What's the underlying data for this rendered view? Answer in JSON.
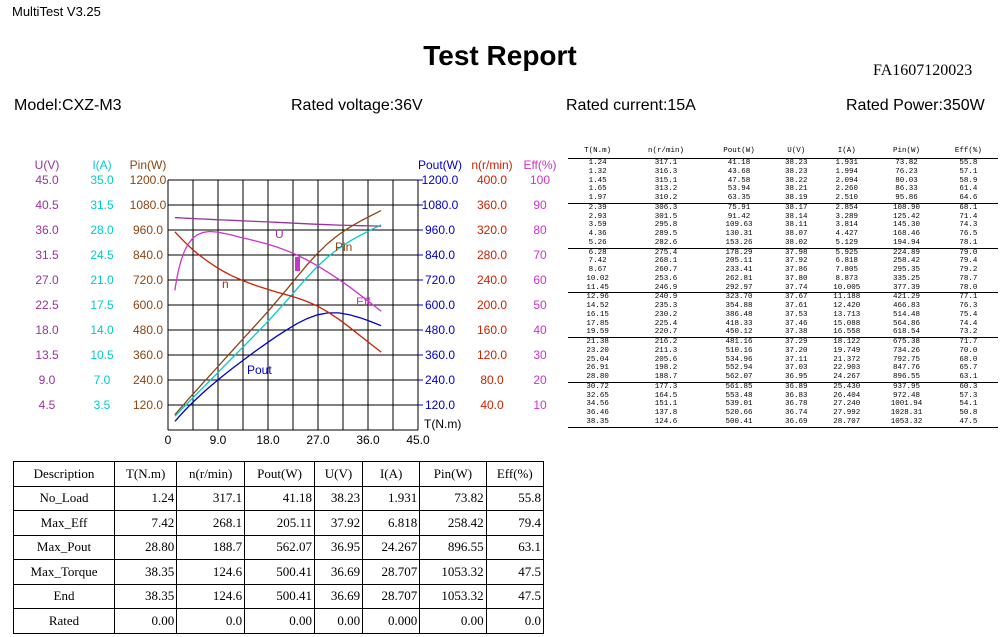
{
  "app": {
    "title": "MultiTest V3.25"
  },
  "report": {
    "title": "Test Report",
    "id": "FA1607120023",
    "model": "Model:CXZ-M3",
    "rated_voltage": "Rated voltage:36V",
    "rated_current": "Rated current:15A",
    "rated_power": "Rated Power:350W"
  },
  "colors": {
    "U": "#993399",
    "I": "#00cccc",
    "Pin": "#8b4513",
    "Pout": "#0000cc",
    "n": "#cc2200",
    "Eff": "#cc33cc"
  },
  "chart_data": {
    "type": "line",
    "xlabel": "T(N.m)",
    "x_ticks": [
      "0",
      "9.0",
      "18.0",
      "27.0",
      "36.0",
      "45.0"
    ],
    "xlim": [
      0,
      45
    ],
    "axes": [
      {
        "label": "U(V)",
        "ticks": [
          "45.0",
          "40.5",
          "36.0",
          "31.5",
          "27.0",
          "22.5",
          "18.0",
          "13.5",
          "9.0",
          "4.5"
        ]
      },
      {
        "label": "I(A)",
        "ticks": [
          "35.0",
          "31.5",
          "28.0",
          "24.5",
          "21.0",
          "17.5",
          "14.0",
          "10.5",
          "7.0",
          "3.5"
        ]
      },
      {
        "label": "Pin(W)",
        "ticks": [
          "1200.0",
          "1080.0",
          "960.0",
          "840.0",
          "720.0",
          "600.0",
          "480.0",
          "360.0",
          "240.0",
          "120.0"
        ]
      },
      {
        "label": "Pout(W)",
        "ticks": [
          "1200.0",
          "1080.0",
          "960.0",
          "840.0",
          "720.0",
          "600.0",
          "480.0",
          "360.0",
          "240.0",
          "120.0"
        ]
      },
      {
        "label": "n(r/min)",
        "ticks": [
          "400.0",
          "360.0",
          "320.0",
          "280.0",
          "240.0",
          "200.0",
          "160.0",
          "120.0",
          "80.0",
          "40.0"
        ]
      },
      {
        "label": "Eff(%)",
        "ticks": [
          "100",
          "90",
          "80",
          "70",
          "60",
          "50",
          "40",
          "30",
          "20",
          "10"
        ]
      }
    ],
    "series_labels": {
      "U": "U",
      "Pin": "Pin",
      "n": "n",
      "Eff": "Eff",
      "Pout": "Pout"
    },
    "series": [
      {
        "name": "U",
        "axis": "U(V)",
        "ymax": 45,
        "values": [
          38.23,
          38.23,
          38.22,
          38.21,
          38.19,
          38.17,
          38.14,
          38.11,
          38.07,
          38.02,
          37.98,
          37.92,
          37.86,
          37.8,
          37.74,
          37.67,
          37.61,
          37.53,
          37.46,
          37.38,
          37.29,
          37.2,
          37.11,
          37.03,
          36.95,
          36.89,
          36.83,
          36.78,
          36.74,
          36.69
        ]
      },
      {
        "name": "I",
        "axis": "I(A)",
        "ymax": 35,
        "values": [
          1.931,
          1.994,
          2.094,
          2.26,
          2.51,
          2.854,
          3.289,
          3.814,
          4.427,
          5.129,
          5.925,
          6.818,
          7.805,
          8.873,
          10.005,
          11.188,
          12.42,
          13.713,
          15.088,
          16.558,
          18.122,
          19.749,
          21.372,
          22.903,
          24.267,
          25.43,
          26.404,
          27.24,
          27.992,
          28.707
        ]
      },
      {
        "name": "Pin",
        "axis": "Pin(W)",
        "ymax": 1200,
        "values": [
          73.82,
          76.23,
          80.03,
          86.33,
          95.86,
          108.9,
          125.42,
          145.3,
          168.46,
          194.94,
          224.89,
          258.42,
          295.35,
          335.25,
          377.39,
          421.29,
          466.83,
          514.48,
          564.86,
          618.54,
          675.38,
          734.26,
          792.75,
          847.76,
          896.55,
          937.95,
          972.48,
          1001.94,
          1028.31,
          1053.32
        ]
      },
      {
        "name": "Pout",
        "axis": "Pout(W)",
        "ymax": 1200,
        "values": [
          41.18,
          43.68,
          47.58,
          53.94,
          63.35,
          75.91,
          91.42,
          109.63,
          130.31,
          153.26,
          178.29,
          205.11,
          233.41,
          262.81,
          292.97,
          323.7,
          354.88,
          386.48,
          418.33,
          450.12,
          481.16,
          510.16,
          534.96,
          552.94,
          562.07,
          561.85,
          553.48,
          539.01,
          520.66,
          500.41
        ]
      },
      {
        "name": "n",
        "axis": "n(r/min)",
        "ymax": 400,
        "values": [
          317.1,
          316.3,
          315.1,
          313.2,
          310.2,
          306.3,
          301.5,
          295.8,
          289.5,
          282.6,
          275.4,
          268.1,
          260.7,
          253.6,
          246.9,
          240.9,
          235.3,
          230.2,
          225.4,
          220.7,
          216.2,
          211.3,
          205.6,
          198.2,
          188.7,
          177.3,
          164.5,
          151.1,
          137.8,
          124.6
        ]
      },
      {
        "name": "Eff",
        "axis": "Eff(%)",
        "ymax": 100,
        "values": [
          55.8,
          57.1,
          58.9,
          61.4,
          64.6,
          68.1,
          71.4,
          74.3,
          76.5,
          78.1,
          79.0,
          79.4,
          79.2,
          78.7,
          78.0,
          77.1,
          76.3,
          75.4,
          74.4,
          73.2,
          71.7,
          70.0,
          68.0,
          65.7,
          63.1,
          60.3,
          57.3,
          54.1,
          50.8,
          47.5
        ]
      }
    ],
    "x": [
      1.24,
      1.32,
      1.45,
      1.65,
      1.97,
      2.39,
      2.93,
      3.59,
      4.36,
      5.26,
      6.28,
      7.42,
      8.67,
      10.02,
      11.45,
      12.96,
      14.52,
      16.15,
      17.85,
      19.59,
      21.38,
      23.2,
      25.04,
      26.91,
      28.8,
      30.72,
      32.65,
      34.56,
      36.46,
      38.35
    ],
    "grid": true
  },
  "summary": {
    "headers": [
      "Description",
      "T(N.m)",
      "n(r/min)",
      "Pout(W)",
      "U(V)",
      "I(A)",
      "Pin(W)",
      "Eff(%)"
    ],
    "rows": [
      [
        "No_Load",
        "1.24",
        "317.1",
        "41.18",
        "38.23",
        "1.931",
        "73.82",
        "55.8"
      ],
      [
        "Max_Eff",
        "7.42",
        "268.1",
        "205.11",
        "37.92",
        "6.818",
        "258.42",
        "79.4"
      ],
      [
        "Max_Pout",
        "28.80",
        "188.7",
        "562.07",
        "36.95",
        "24.267",
        "896.55",
        "63.1"
      ],
      [
        "Max_Torque",
        "38.35",
        "124.6",
        "500.41",
        "36.69",
        "28.707",
        "1053.32",
        "47.5"
      ],
      [
        "End",
        "38.35",
        "124.6",
        "500.41",
        "36.69",
        "28.707",
        "1053.32",
        "47.5"
      ],
      [
        "Rated",
        "0.00",
        "0.0",
        "0.00",
        "0.00",
        "0.000",
        "0.00",
        "0.0"
      ]
    ]
  },
  "data_table": {
    "headers": [
      "T(N.m)",
      "n(r/min)",
      "Pout(W)",
      "U(V)",
      "I(A)",
      "Pin(W)",
      "Eff(%)"
    ],
    "rows": [
      [
        "1.24",
        "317.1",
        "41.18",
        "38.23",
        "1.931",
        "73.82",
        "55.8"
      ],
      [
        "1.32",
        "316.3",
        "43.68",
        "38.23",
        "1.994",
        "76.23",
        "57.1"
      ],
      [
        "1.45",
        "315.1",
        "47.58",
        "38.22",
        "2.094",
        "80.03",
        "58.9"
      ],
      [
        "1.65",
        "313.2",
        "53.94",
        "38.21",
        "2.260",
        "86.33",
        "61.4"
      ],
      [
        "1.97",
        "310.2",
        "63.35",
        "38.19",
        "2.510",
        "95.86",
        "64.6"
      ],
      [
        "2.39",
        "306.3",
        "75.91",
        "38.17",
        "2.854",
        "108.90",
        "68.1"
      ],
      [
        "2.93",
        "301.5",
        "91.42",
        "38.14",
        "3.289",
        "125.42",
        "71.4"
      ],
      [
        "3.59",
        "295.8",
        "109.63",
        "38.11",
        "3.814",
        "145.30",
        "74.3"
      ],
      [
        "4.36",
        "289.5",
        "130.31",
        "38.07",
        "4.427",
        "168.46",
        "76.5"
      ],
      [
        "5.26",
        "282.6",
        "153.26",
        "38.02",
        "5.129",
        "194.94",
        "78.1"
      ],
      [
        "6.28",
        "275.4",
        "178.29",
        "37.98",
        "5.925",
        "224.89",
        "79.0"
      ],
      [
        "7.42",
        "268.1",
        "205.11",
        "37.92",
        "6.818",
        "258.42",
        "79.4"
      ],
      [
        "8.67",
        "260.7",
        "233.41",
        "37.86",
        "7.805",
        "295.35",
        "79.2"
      ],
      [
        "10.02",
        "253.6",
        "262.81",
        "37.80",
        "8.873",
        "335.25",
        "78.7"
      ],
      [
        "11.45",
        "246.9",
        "292.97",
        "37.74",
        "10.005",
        "377.39",
        "78.0"
      ],
      [
        "12.96",
        "240.9",
        "323.70",
        "37.67",
        "11.188",
        "421.29",
        "77.1"
      ],
      [
        "14.52",
        "235.3",
        "354.88",
        "37.61",
        "12.420",
        "466.83",
        "76.3"
      ],
      [
        "16.15",
        "230.2",
        "386.48",
        "37.53",
        "13.713",
        "514.48",
        "75.4"
      ],
      [
        "17.85",
        "225.4",
        "418.33",
        "37.46",
        "15.088",
        "564.86",
        "74.4"
      ],
      [
        "19.59",
        "220.7",
        "450.12",
        "37.38",
        "16.558",
        "618.54",
        "73.2"
      ],
      [
        "21.38",
        "216.2",
        "481.16",
        "37.29",
        "18.122",
        "675.38",
        "71.7"
      ],
      [
        "23.20",
        "211.3",
        "510.16",
        "37.20",
        "19.749",
        "734.26",
        "70.0"
      ],
      [
        "25.04",
        "205.6",
        "534.96",
        "37.11",
        "21.372",
        "792.75",
        "68.0"
      ],
      [
        "26.91",
        "198.2",
        "552.94",
        "37.03",
        "22.903",
        "847.76",
        "65.7"
      ],
      [
        "28.80",
        "188.7",
        "562.07",
        "36.95",
        "24.267",
        "896.55",
        "63.1"
      ],
      [
        "30.72",
        "177.3",
        "561.85",
        "36.89",
        "25.430",
        "937.95",
        "60.3"
      ],
      [
        "32.65",
        "164.5",
        "553.48",
        "36.83",
        "26.404",
        "972.48",
        "57.3"
      ],
      [
        "34.56",
        "151.1",
        "539.01",
        "36.78",
        "27.240",
        "1001.94",
        "54.1"
      ],
      [
        "36.46",
        "137.8",
        "520.66",
        "36.74",
        "27.992",
        "1028.31",
        "50.8"
      ],
      [
        "38.35",
        "124.6",
        "500.41",
        "36.69",
        "28.707",
        "1053.32",
        "47.5"
      ]
    ]
  }
}
